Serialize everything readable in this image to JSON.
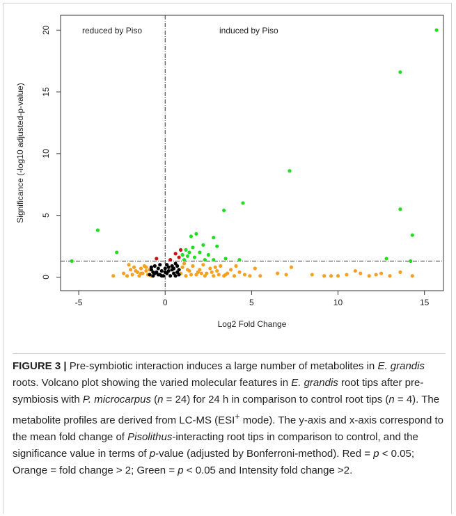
{
  "chart_data": {
    "type": "scatter",
    "xlabel": "Log2 Fold Change",
    "ylabel": "Significance (-log10 adjusted-p-value)",
    "annotations": [
      "reduced by Piso",
      "induced by Piso"
    ],
    "xlim": [
      -6.05,
      16.1
    ],
    "ylim": [
      -1.1,
      21.2
    ],
    "xticks": [
      -5,
      0,
      5,
      10,
      15
    ],
    "yticks": [
      0,
      5,
      10,
      15,
      20
    ],
    "hline": 1.3,
    "vline": 0,
    "series": [
      {
        "color": "#f5a020",
        "x": [
          -2.4,
          -2.2,
          -2.0,
          -1.9,
          -1.8,
          -1.6,
          -1.5,
          -1.4,
          -1.3,
          -1.2,
          -1.1,
          -1.0,
          -0.9,
          -0.8,
          -2.1,
          -1.7,
          -1.4,
          -1.1,
          -3.0,
          0.9,
          1.0,
          1.2,
          1.4,
          1.6,
          1.8,
          2.0,
          2.2,
          2.4,
          2.6,
          2.8,
          3.0,
          3.2,
          3.5,
          3.8,
          4.0,
          4.3,
          4.6,
          5.2,
          5.5,
          6.5,
          7.0,
          7.3,
          8.5,
          9.2,
          9.6,
          10.0,
          10.5,
          11.0,
          11.3,
          11.8,
          12.2,
          12.5,
          13.0,
          13.6,
          14.3,
          1.1,
          1.5,
          1.9,
          2.3,
          2.7,
          3.1,
          3.6,
          4.1,
          4.9,
          1.3,
          2.1,
          2.9,
          3.4
        ],
        "y": [
          0.3,
          0.1,
          0.6,
          0.2,
          0.8,
          0.4,
          0.1,
          0.7,
          0.3,
          0.9,
          0.5,
          0.2,
          0.6,
          0.1,
          1.0,
          0.5,
          0.3,
          0.8,
          0.1,
          0.3,
          0.8,
          0.1,
          0.5,
          0.9,
          0.2,
          0.6,
          1.0,
          0.3,
          0.7,
          0.1,
          0.5,
          0.9,
          0.2,
          0.6,
          0.1,
          0.4,
          0.2,
          0.7,
          0.1,
          0.3,
          0.2,
          0.8,
          0.2,
          0.1,
          0.1,
          0.1,
          0.2,
          0.5,
          0.3,
          0.1,
          0.2,
          0.3,
          0.1,
          0.4,
          0.1,
          1.1,
          0.2,
          0.4,
          0.1,
          0.4,
          0.2,
          0.3,
          0.9,
          0.1,
          0.6,
          0.3,
          0.8,
          0.1
        ]
      },
      {
        "color": "#000000",
        "x": [
          -0.9,
          -0.8,
          -0.7,
          -0.6,
          -0.5,
          -0.4,
          -0.3,
          -0.2,
          -0.1,
          0.0,
          0.1,
          0.2,
          0.3,
          0.4,
          0.5,
          0.6,
          0.7,
          0.8,
          -0.8,
          -0.6,
          -0.4,
          -0.2,
          0.0,
          0.2,
          0.4,
          0.6,
          0.8,
          -0.7,
          -0.3,
          0.1,
          0.5,
          0.7
        ],
        "y": [
          0.2,
          0.6,
          0.1,
          0.9,
          0.4,
          0.2,
          1.0,
          0.5,
          0.1,
          0.7,
          0.3,
          0.8,
          0.1,
          0.6,
          0.3,
          1.1,
          0.4,
          0.2,
          0.8,
          0.3,
          0.7,
          0.1,
          0.4,
          0.5,
          0.9,
          0.1,
          0.6,
          0.4,
          0.2,
          1.0,
          0.7,
          0.9
        ]
      },
      {
        "color": "#cc1111",
        "x": [
          -0.5,
          0.6,
          0.8,
          0.3,
          0.9
        ],
        "y": [
          1.5,
          1.9,
          1.6,
          1.4,
          2.2
        ]
      },
      {
        "color": "#22dd22",
        "x": [
          15.7,
          13.6,
          7.2,
          4.5,
          3.4,
          13.6,
          14.3,
          -3.9,
          -2.8,
          -5.4,
          1.8,
          2.8,
          2.2,
          1.5,
          3.0,
          1.2,
          2.0,
          2.5,
          1.3,
          1.7,
          3.5,
          1.0,
          2.3,
          1.6,
          2.8,
          4.3,
          12.8,
          14.2,
          1.1,
          1.4
        ],
        "y": [
          20.0,
          16.6,
          8.6,
          6.0,
          5.4,
          5.5,
          3.4,
          3.8,
          2.0,
          1.3,
          3.5,
          3.2,
          2.6,
          3.3,
          2.5,
          2.2,
          2.0,
          1.8,
          1.7,
          1.6,
          1.5,
          1.8,
          1.4,
          2.4,
          1.4,
          1.4,
          1.5,
          1.3,
          1.4,
          2.0
        ]
      }
    ]
  },
  "caption": {
    "parts": [
      "FIGURE 3 |",
      " Pre-symbiotic interaction induces a large number of metabolites in ",
      "E. grandis",
      " roots. Volcano plot showing the varied molecular features in ",
      "E. grandis",
      " root tips after pre-symbiosis with ",
      "P. microcarpus",
      " (",
      "n",
      " = 24) for 24 h in comparison to control root tips (",
      "n",
      " = 4). The metabolite profiles are derived from LC-MS (ESI",
      "+",
      " mode). The y-axis and x-axis correspond to the mean fold change of ",
      "Pisolithus",
      "-interacting root tips in comparison to control, and the significance value in terms of ",
      "p",
      "-value (adjusted by Bonferroni-method). Red = ",
      "p",
      " < 0.05; Orange = fold change > 2; Green = ",
      "p",
      " < 0.05 and Intensity fold change >2."
    ]
  }
}
